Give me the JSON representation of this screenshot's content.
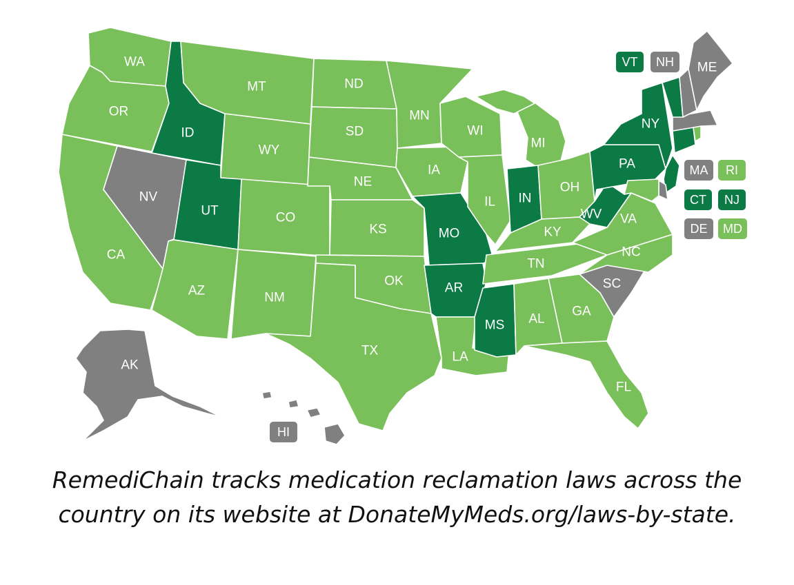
{
  "colors": {
    "light_green": "#7ac05a",
    "dark_green": "#0b7a45",
    "gray": "#808080",
    "border": "#ffffff",
    "label_text": "#ffffff",
    "caption_text": "#111111"
  },
  "states": {
    "WA": {
      "label": "WA",
      "status": "light"
    },
    "OR": {
      "label": "OR",
      "status": "light"
    },
    "CA": {
      "label": "CA",
      "status": "light"
    },
    "ID": {
      "label": "ID",
      "status": "dark"
    },
    "NV": {
      "label": "NV",
      "status": "gray"
    },
    "MT": {
      "label": "MT",
      "status": "light"
    },
    "WY": {
      "label": "WY",
      "status": "light"
    },
    "UT": {
      "label": "UT",
      "status": "dark"
    },
    "AZ": {
      "label": "AZ",
      "status": "light"
    },
    "CO": {
      "label": "CO",
      "status": "light"
    },
    "NM": {
      "label": "NM",
      "status": "light"
    },
    "ND": {
      "label": "ND",
      "status": "light"
    },
    "SD": {
      "label": "SD",
      "status": "light"
    },
    "NE": {
      "label": "NE",
      "status": "light"
    },
    "KS": {
      "label": "KS",
      "status": "light"
    },
    "OK": {
      "label": "OK",
      "status": "light"
    },
    "TX": {
      "label": "TX",
      "status": "light"
    },
    "MN": {
      "label": "MN",
      "status": "light"
    },
    "IA": {
      "label": "IA",
      "status": "light"
    },
    "MO": {
      "label": "MO",
      "status": "dark"
    },
    "AR": {
      "label": "AR",
      "status": "dark"
    },
    "LA": {
      "label": "LA",
      "status": "light"
    },
    "WI": {
      "label": "WI",
      "status": "light"
    },
    "IL": {
      "label": "IL",
      "status": "light"
    },
    "MS": {
      "label": "MS",
      "status": "dark"
    },
    "MI": {
      "label": "MI",
      "status": "light"
    },
    "IN": {
      "label": "IN",
      "status": "dark"
    },
    "KY": {
      "label": "KY",
      "status": "light"
    },
    "TN": {
      "label": "TN",
      "status": "light"
    },
    "AL": {
      "label": "AL",
      "status": "light"
    },
    "OH": {
      "label": "OH",
      "status": "light"
    },
    "WV": {
      "label": "WV",
      "status": "dark"
    },
    "VA": {
      "label": "VA",
      "status": "light"
    },
    "NC": {
      "label": "NC",
      "status": "light"
    },
    "SC": {
      "label": "SC",
      "status": "gray"
    },
    "GA": {
      "label": "GA",
      "status": "light"
    },
    "FL": {
      "label": "FL",
      "status": "light"
    },
    "PA": {
      "label": "PA",
      "status": "dark"
    },
    "NY": {
      "label": "NY",
      "status": "dark"
    },
    "ME": {
      "label": "ME",
      "status": "gray"
    },
    "AK": {
      "label": "AK",
      "status": "gray"
    },
    "HI": {
      "label": "HI",
      "status": "gray"
    },
    "VT": {
      "label": "VT",
      "status": "dark"
    },
    "NH": {
      "label": "NH",
      "status": "gray"
    },
    "MA": {
      "label": "MA",
      "status": "gray"
    },
    "RI": {
      "label": "RI",
      "status": "light"
    },
    "CT": {
      "label": "CT",
      "status": "dark"
    },
    "NJ": {
      "label": "NJ",
      "status": "dark"
    },
    "DE": {
      "label": "DE",
      "status": "gray"
    },
    "MD": {
      "label": "MD",
      "status": "light"
    }
  },
  "caption": "RemediChain tracks medication reclamation laws across the country on its website at DonateMyMeds.org/laws-by-state."
}
